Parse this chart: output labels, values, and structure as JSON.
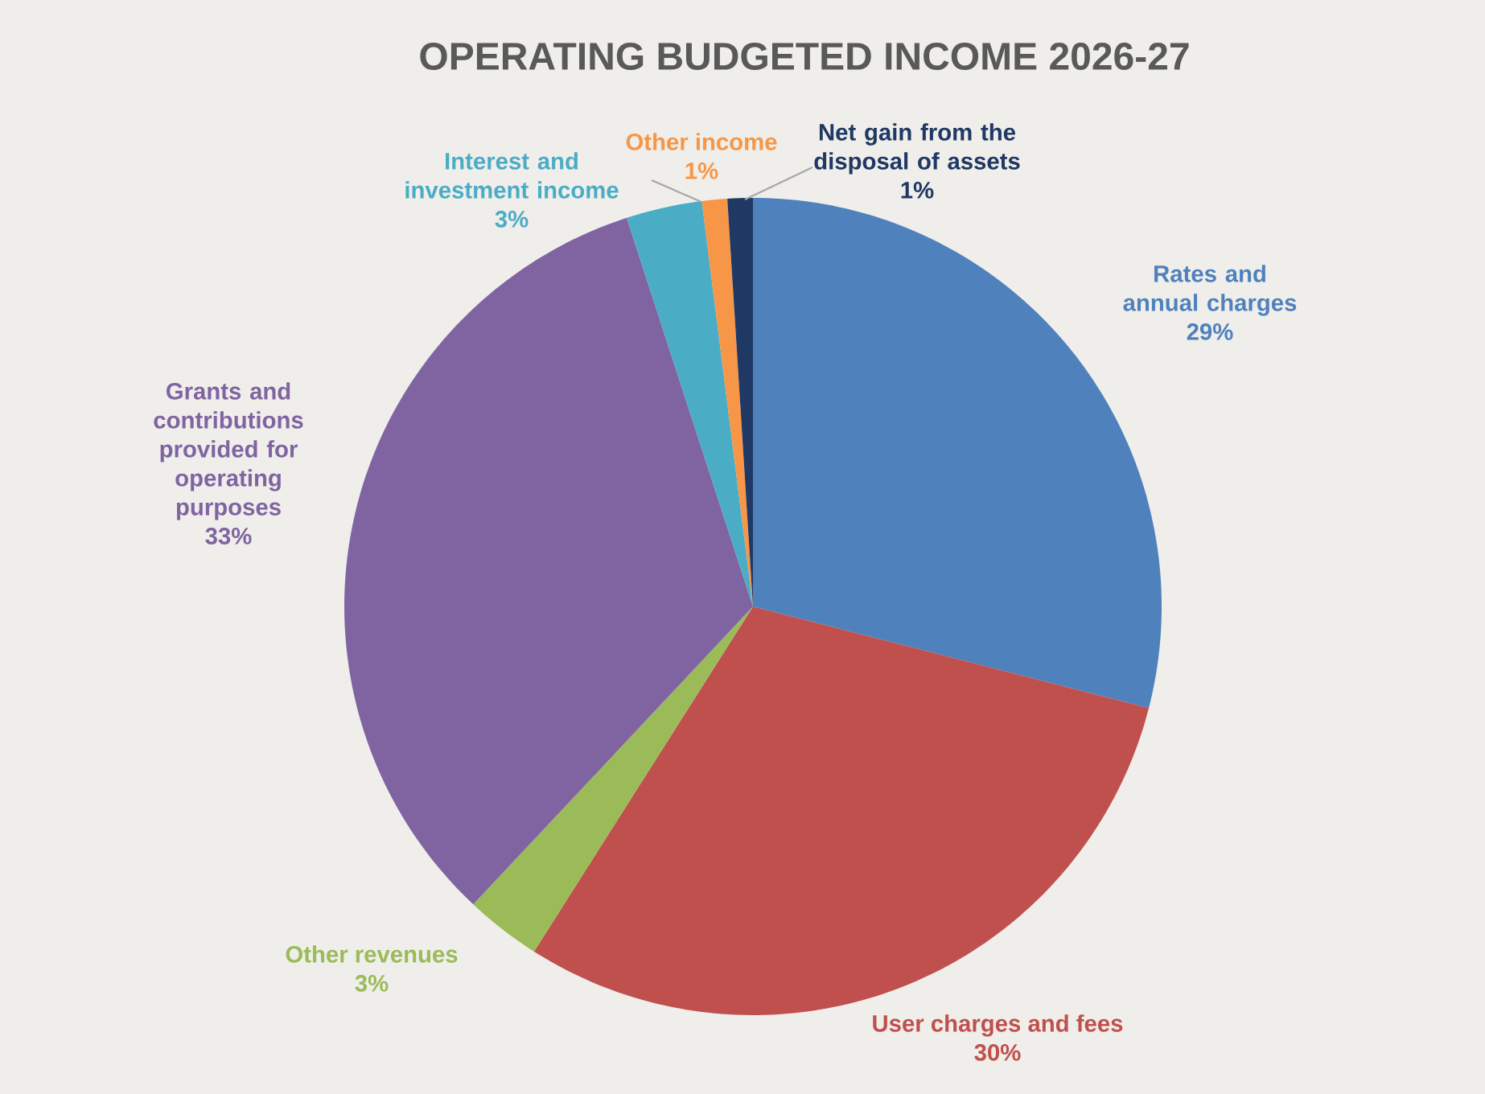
{
  "chart_data": {
    "type": "pie",
    "title": "OPERATING BUDGETED INCOME 2026-27",
    "categories": [
      "Rates and annual charges",
      "User charges and fees",
      "Other revenues",
      "Grants and contributions provided for operating purposes",
      "Interest and investment income",
      "Other income",
      "Net gain from the disposal of assets"
    ],
    "values": [
      29,
      30,
      3,
      33,
      3,
      1,
      1
    ],
    "value_labels": [
      "29%",
      "30%",
      "3%",
      "33%",
      "3%",
      "1%",
      "1%"
    ],
    "colors": [
      "#4f81bd",
      "#c0504d",
      "#9bbb59",
      "#8064a2",
      "#4bacc6",
      "#f79646",
      "#1f3864"
    ]
  }
}
